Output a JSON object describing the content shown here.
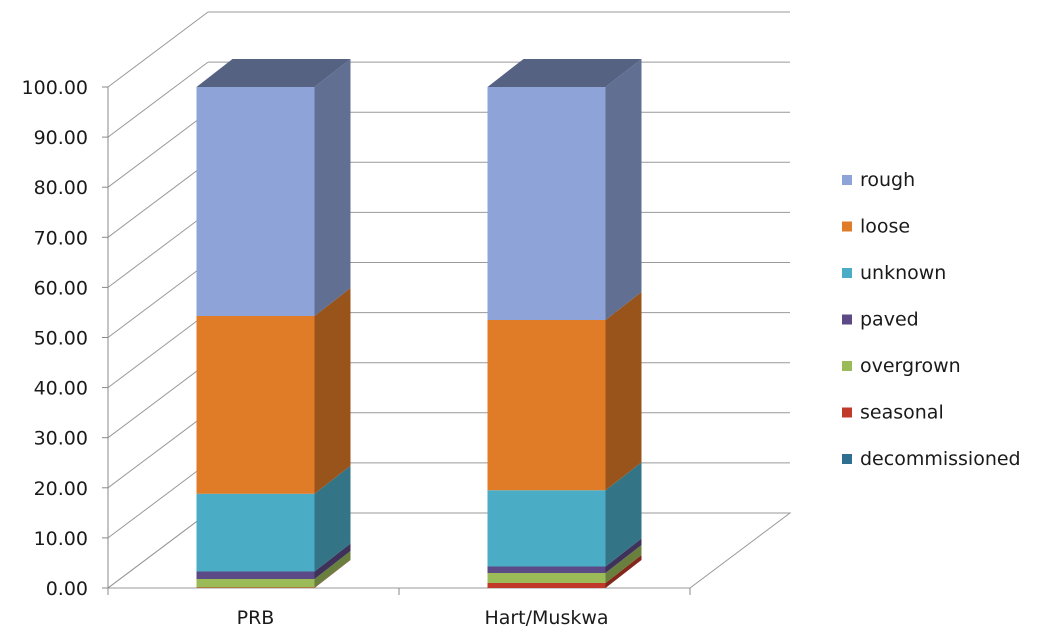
{
  "chart_data": {
    "type": "bar",
    "stacked": true,
    "three_d": true,
    "categories": [
      "PRB",
      "Hart/Muskwa"
    ],
    "series": [
      {
        "name": "decommissioned",
        "values": [
          0.0,
          0.0
        ],
        "color": "#2f6f8f"
      },
      {
        "name": "seasonal",
        "values": [
          0.1,
          1.0
        ],
        "color": "#c0392b"
      },
      {
        "name": "overgrown",
        "values": [
          1.7,
          2.0
        ],
        "color": "#9bbb59"
      },
      {
        "name": "paved",
        "values": [
          1.5,
          1.3
        ],
        "color": "#5b4a86"
      },
      {
        "name": "unknown",
        "values": [
          15.5,
          15.2
        ],
        "color": "#4bacc6"
      },
      {
        "name": "loose",
        "values": [
          35.5,
          34.0
        ],
        "color": "#e07b28"
      },
      {
        "name": "rough",
        "values": [
          45.7,
          46.5
        ],
        "color": "#8ea3d8"
      }
    ],
    "y_ticks": [
      "0.00",
      "10.00",
      "20.00",
      "30.00",
      "40.00",
      "50.00",
      "60.00",
      "70.00",
      "80.00",
      "90.00",
      "100.00"
    ],
    "ylim": [
      0,
      100
    ],
    "grid": true,
    "legend_position": "right",
    "legend_order": [
      "rough",
      "loose",
      "unknown",
      "paved",
      "overgrown",
      "seasonal",
      "decommissioned"
    ],
    "title": "",
    "xlabel": "",
    "ylabel": ""
  }
}
